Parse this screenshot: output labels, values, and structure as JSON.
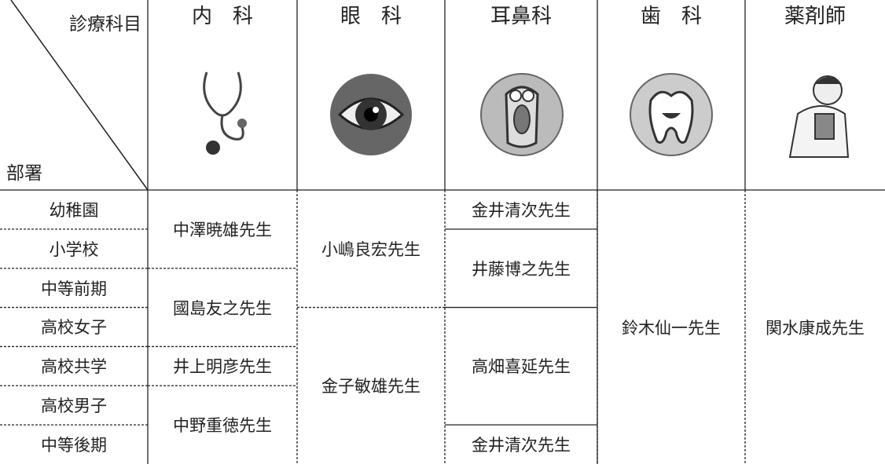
{
  "header": {
    "corner_top": "診療科目",
    "corner_bottom": "部署",
    "columns": [
      "内　科",
      "眼　科",
      "耳鼻科",
      "歯　科",
      "薬剤師"
    ]
  },
  "rows": [
    "幼稚園",
    "小学校",
    "中等前期",
    "高校女子",
    "高校共学",
    "高校男子",
    "中等後期"
  ],
  "assignments": [
    [
      "中澤暁雄先生",
      null,
      "國島友之先生",
      null,
      "井上明彦先生",
      "中野重徳先生",
      null
    ],
    [
      "小嶋良宏先生",
      null,
      null,
      "金子敏雄先生",
      null,
      null,
      null
    ],
    [
      "金井清次先生",
      "井藤博之先生",
      null,
      "高畑喜延先生",
      null,
      null,
      "金井清次先生"
    ],
    [
      "鈴木仙一先生",
      null,
      null,
      null,
      null,
      null,
      null
    ],
    [
      "関水康成先生",
      null,
      null,
      null,
      null,
      null,
      null
    ]
  ]
}
